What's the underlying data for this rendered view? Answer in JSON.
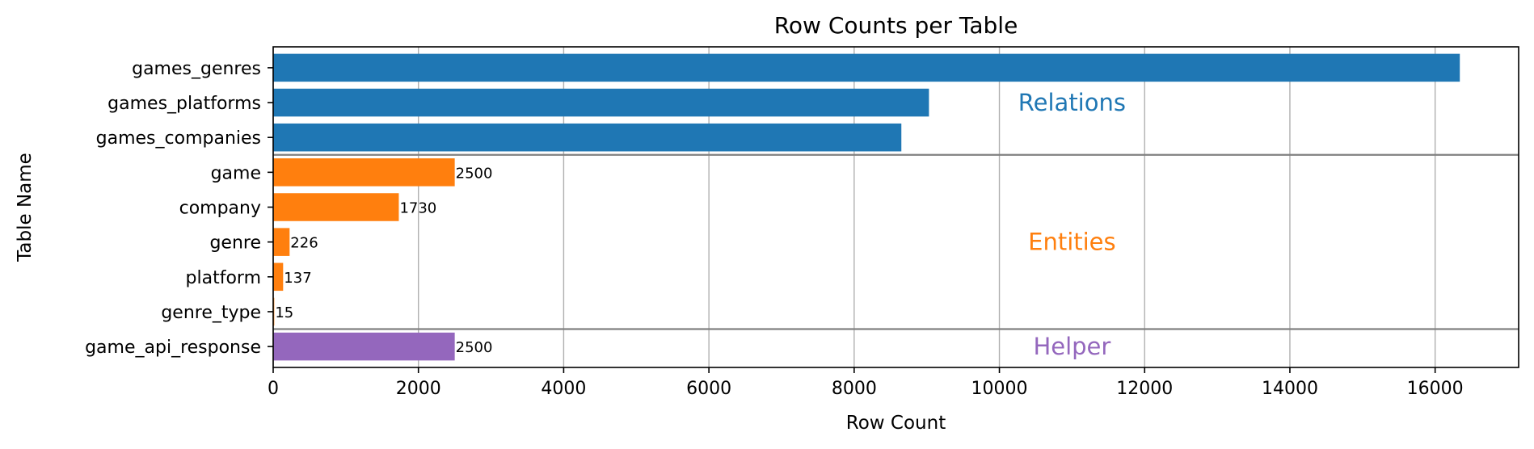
{
  "chart_data": {
    "type": "bar",
    "orientation": "horizontal",
    "title": "Row Counts per Table",
    "xlabel": "Row Count",
    "ylabel": "Table Name",
    "xlim": [
      0,
      17150
    ],
    "xticks": [
      0,
      2000,
      4000,
      6000,
      8000,
      10000,
      12000,
      14000,
      16000
    ],
    "grid": true,
    "categories": [
      "games_genres",
      "games_platforms",
      "games_companies",
      "game",
      "company",
      "genre",
      "platform",
      "genre_type",
      "game_api_response"
    ],
    "values": [
      16340,
      9030,
      8650,
      2500,
      1730,
      226,
      137,
      15,
      2500
    ],
    "data_labels": [
      "",
      "",
      "",
      "2500",
      "1730",
      "226",
      "137",
      "15",
      "2500"
    ],
    "groups": [
      {
        "label": "Relations",
        "color": "#1f77b4",
        "members": [
          "games_genres",
          "games_platforms",
          "games_companies"
        ]
      },
      {
        "label": "Entities",
        "color": "#ff7f0e",
        "members": [
          "game",
          "company",
          "genre",
          "platform",
          "genre_type"
        ]
      },
      {
        "label": "Helper",
        "color": "#9467bd",
        "members": [
          "game_api_response"
        ]
      }
    ],
    "group_label_x": 11000
  }
}
